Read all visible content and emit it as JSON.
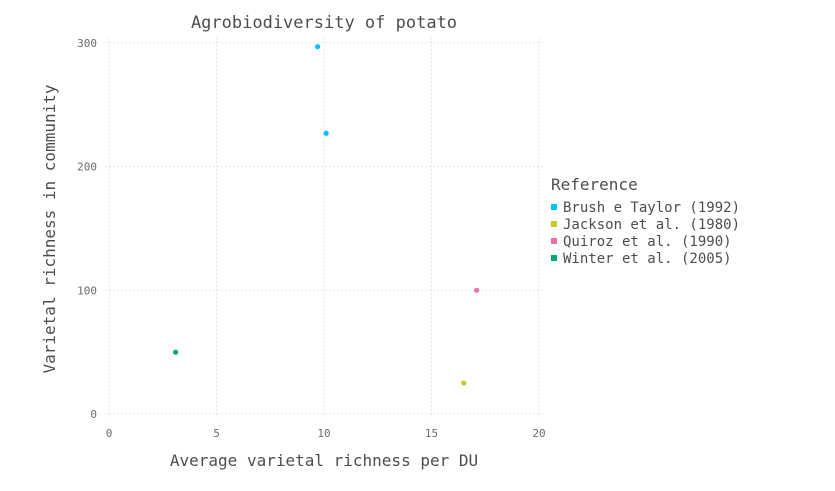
{
  "chart_data": {
    "type": "scatter",
    "title": "Agrobiodiversity of potato",
    "xlabel": "Average varietal richness per DU",
    "ylabel": "Varietal richness in community",
    "xlim": [
      0,
      20
    ],
    "ylim": [
      0,
      300
    ],
    "xticks": [
      "0",
      "5",
      "10",
      "15",
      "20"
    ],
    "yticks": [
      "0",
      "100",
      "200",
      "300"
    ],
    "grid": true,
    "legend": {
      "title": "Reference",
      "placement": "right"
    },
    "series": [
      {
        "name": "Brush e Taylor (1992)",
        "color": "#00BFFF",
        "points": [
          {
            "x": 9.7,
            "y": 297
          },
          {
            "x": 10.1,
            "y": 227
          }
        ]
      },
      {
        "name": "Jackson et al. (1980)",
        "color": "#C2C92E",
        "points": [
          {
            "x": 16.5,
            "y": 25
          }
        ]
      },
      {
        "name": "Quiroz et al. (1990)",
        "color": "#F06FAA",
        "points": [
          {
            "x": 17.1,
            "y": 100
          }
        ]
      },
      {
        "name": "Winter et al. (2005)",
        "color": "#00A878",
        "points": [
          {
            "x": 3.1,
            "y": 50
          }
        ]
      }
    ]
  }
}
